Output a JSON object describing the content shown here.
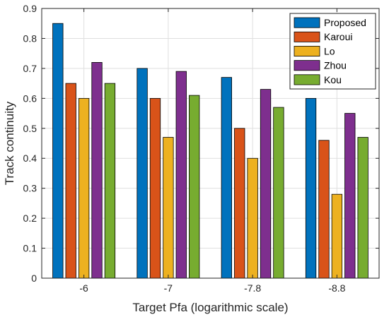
{
  "chart_data": {
    "type": "bar",
    "categories": [
      "-6",
      "-7",
      "-7.8",
      "-8.8"
    ],
    "series": [
      {
        "name": "Proposed",
        "color": "#0072BD",
        "values": [
          0.85,
          0.7,
          0.67,
          0.6
        ]
      },
      {
        "name": "Karoui",
        "color": "#D95319",
        "values": [
          0.65,
          0.6,
          0.5,
          0.46
        ]
      },
      {
        "name": "Lo",
        "color": "#EDB120",
        "values": [
          0.6,
          0.47,
          0.4,
          0.28
        ]
      },
      {
        "name": "Zhou",
        "color": "#7E2F8E",
        "values": [
          0.72,
          0.69,
          0.63,
          0.55
        ]
      },
      {
        "name": "Kou",
        "color": "#77AC30",
        "values": [
          0.65,
          0.61,
          0.57,
          0.47
        ]
      }
    ],
    "xlabel": "Target Pfa (logarithmic scale)",
    "ylabel": "Track continuity",
    "ylim": [
      0,
      0.9
    ],
    "yticks": [
      "0",
      "0.1",
      "0.2",
      "0.3",
      "0.4",
      "0.5",
      "0.6",
      "0.7",
      "0.8",
      "0.9"
    ],
    "grid": true,
    "legend_position": "top-right"
  }
}
